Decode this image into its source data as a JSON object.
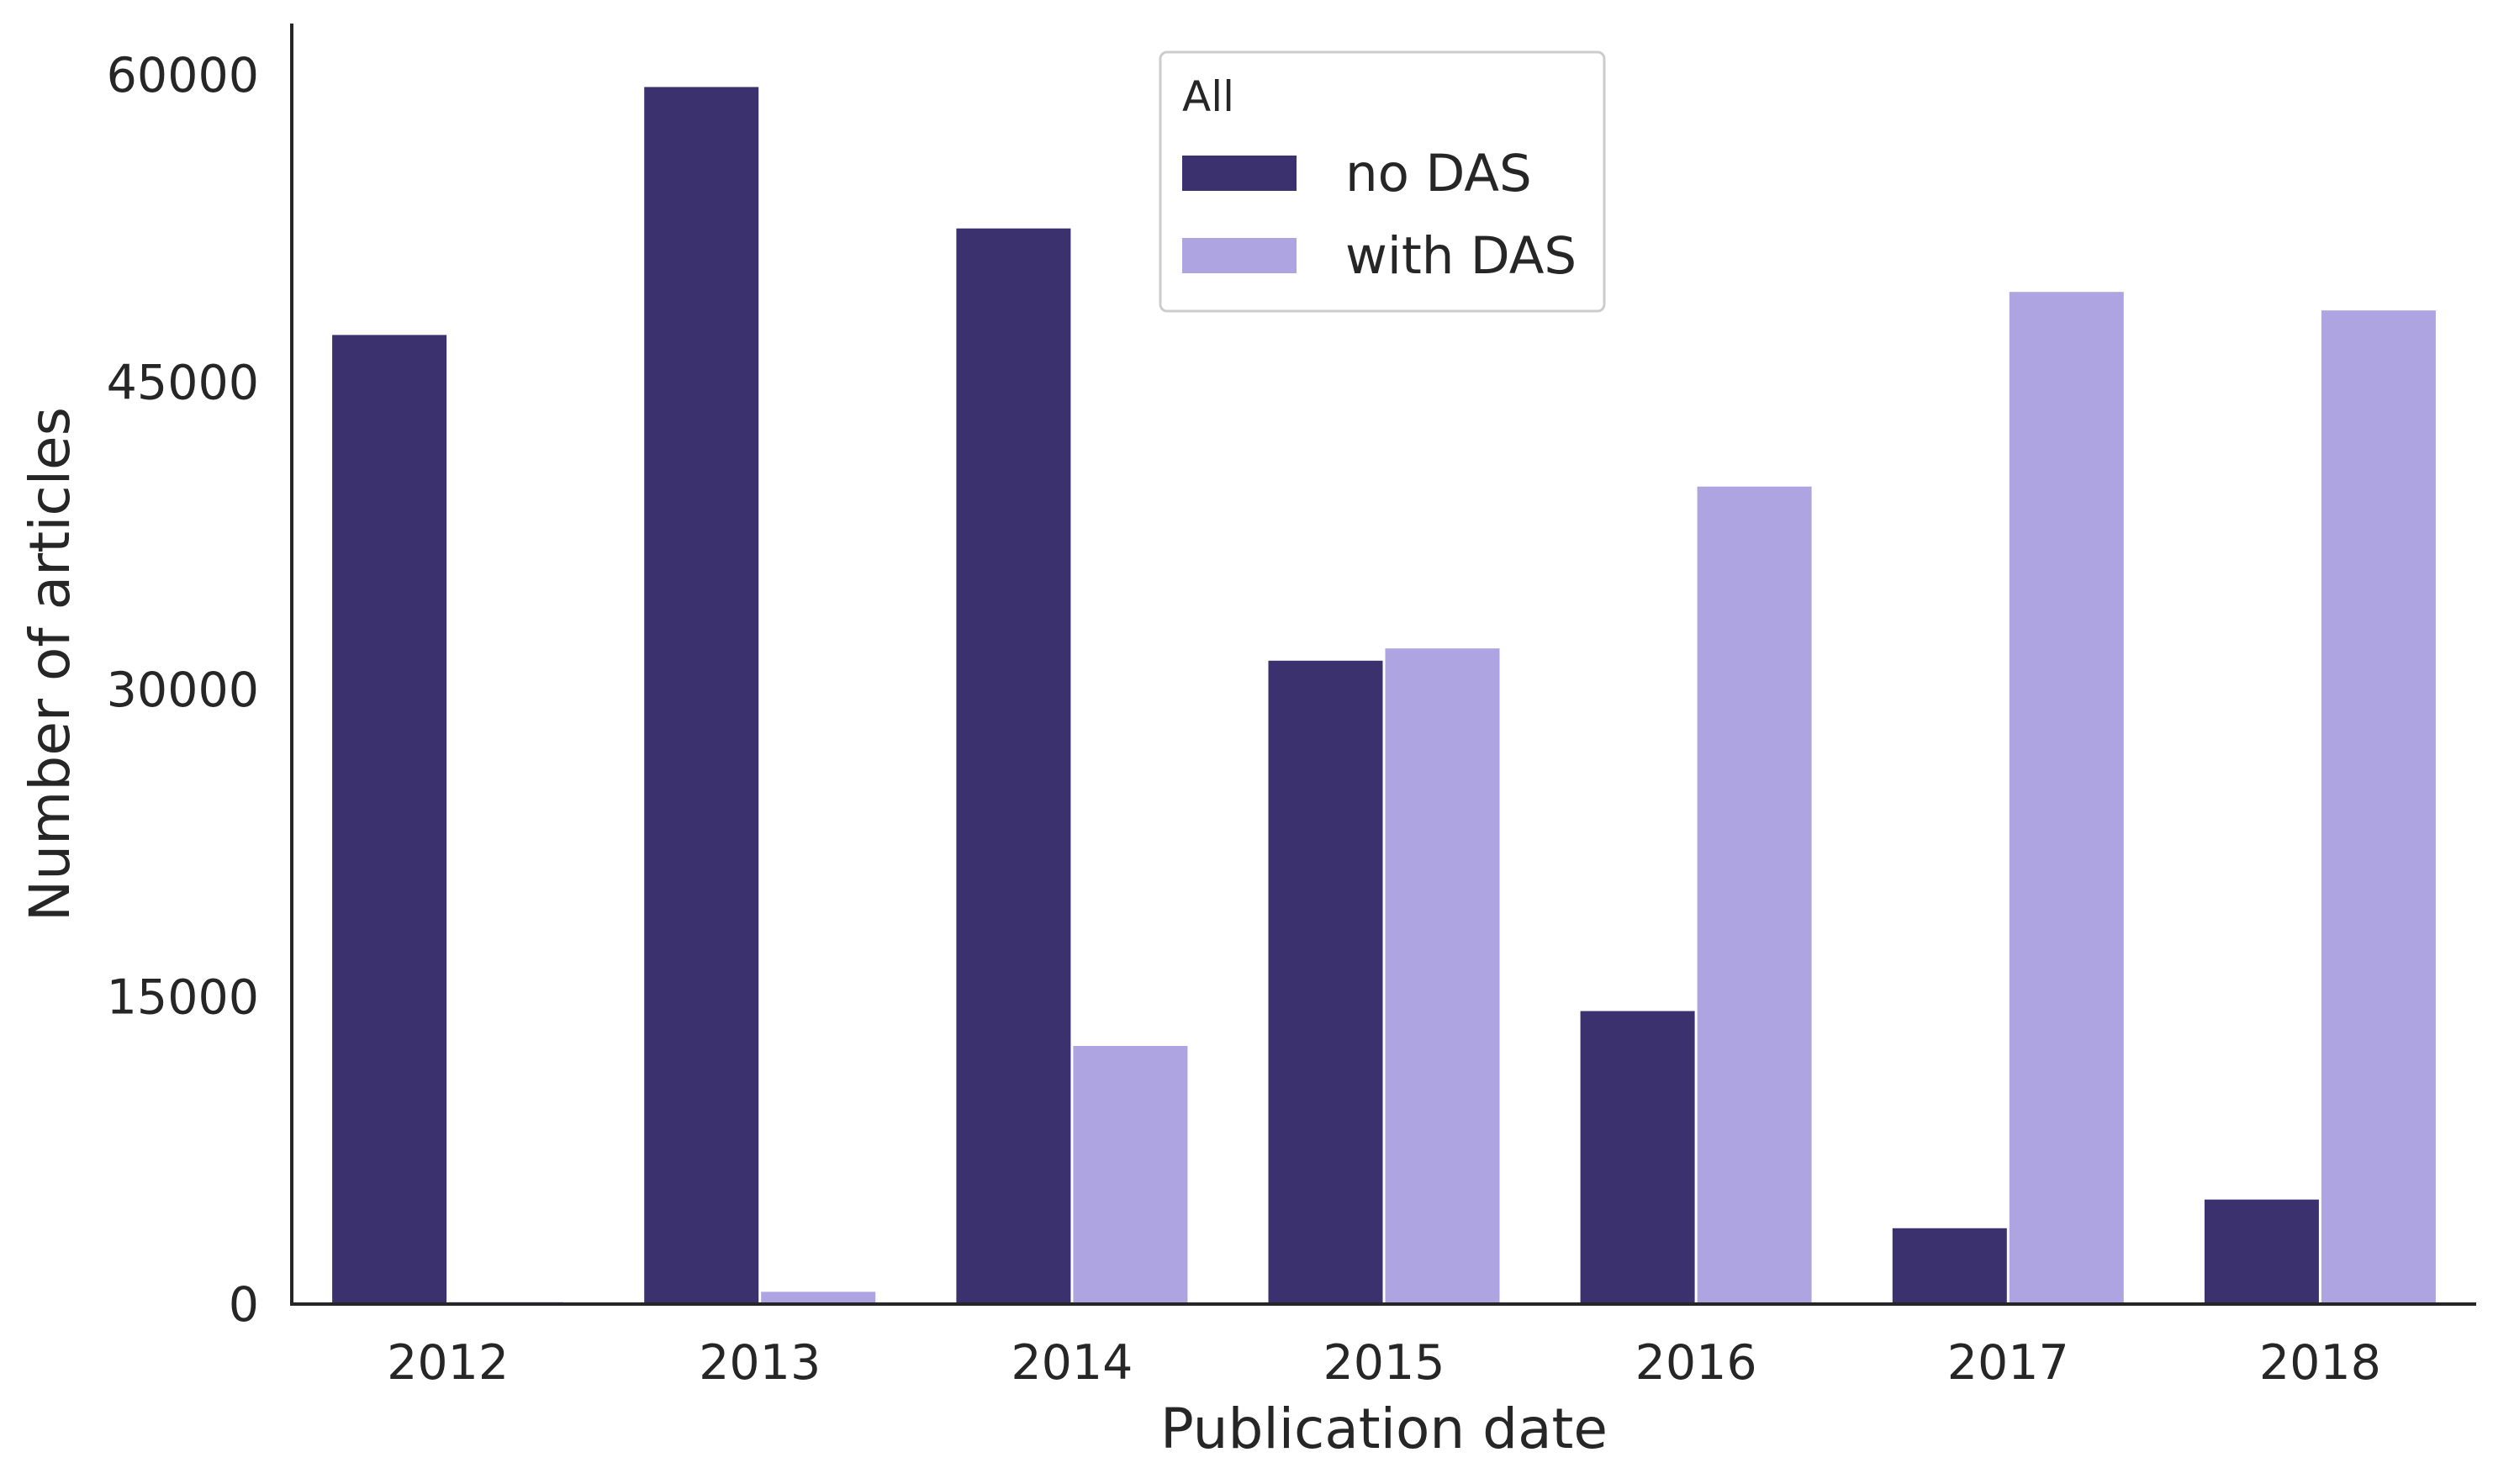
{
  "chart_data": {
    "type": "bar",
    "xlabel": "Publication date",
    "ylabel": "Number of articles",
    "categories": [
      "2012",
      "2013",
      "2014",
      "2015",
      "2016",
      "2017",
      "2018"
    ],
    "series": [
      {
        "name": "no DAS",
        "color": "#3b316e",
        "values": [
          47300,
          59400,
          52500,
          31400,
          14300,
          3700,
          5100
        ]
      },
      {
        "name": "with DAS",
        "color": "#aea4e2",
        "values": [
          100,
          600,
          12600,
          32000,
          39900,
          49400,
          48500
        ]
      }
    ],
    "legend": {
      "title": "All",
      "position": "top-center"
    },
    "ylim": [
      0,
      62500
    ],
    "yticks": [
      0,
      15000,
      30000,
      45000,
      60000
    ],
    "grid": false
  }
}
